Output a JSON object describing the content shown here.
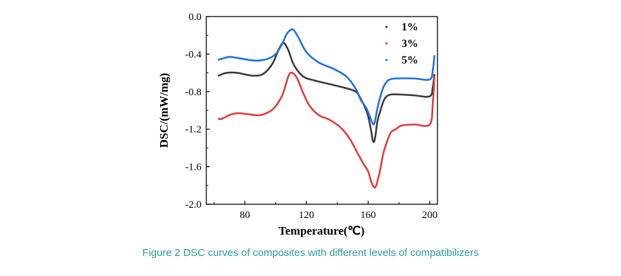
{
  "caption": "Figure 2 DSC curves of composites with different levels of compatibilizers",
  "chart_data": {
    "type": "line",
    "title": "",
    "xlabel": "Temperature(℃)",
    "ylabel": "DSC/(mW/mg)",
    "xlim": [
      55,
      205
    ],
    "ylim": [
      -2.0,
      0.0
    ],
    "xticks": [
      80,
      120,
      160,
      200
    ],
    "yticks": [
      0.0,
      -0.4,
      -0.8,
      -1.2,
      -1.6,
      -2.0
    ],
    "xtick_labels": [
      "80",
      "120",
      "160",
      "200"
    ],
    "ytick_labels": [
      "0.0",
      "-0.4",
      "-0.8",
      "-1.2",
      "-1.6",
      "-2.0"
    ],
    "legend_position": "top-right",
    "grid": false,
    "series": [
      {
        "name": "1%",
        "color": "#3a3a3a",
        "x": [
          63,
          68,
          75,
          85,
          92,
          98,
          102,
          105,
          108,
          112,
          118,
          125,
          135,
          145,
          152,
          155,
          158,
          160,
          162,
          163,
          164,
          165,
          166,
          168,
          170,
          172,
          175,
          180,
          190,
          200,
          202,
          203
        ],
        "y": [
          -0.63,
          -0.6,
          -0.6,
          -0.63,
          -0.61,
          -0.5,
          -0.35,
          -0.28,
          -0.35,
          -0.52,
          -0.64,
          -0.68,
          -0.72,
          -0.76,
          -0.8,
          -0.87,
          -0.97,
          -1.06,
          -1.22,
          -1.32,
          -1.33,
          -1.24,
          -1.12,
          -1.0,
          -0.9,
          -0.85,
          -0.83,
          -0.83,
          -0.84,
          -0.85,
          -0.75,
          -0.62
        ]
      },
      {
        "name": "3%",
        "color": "#e03b3b",
        "x": [
          63,
          65,
          70,
          75,
          82,
          90,
          98,
          104,
          107,
          109,
          111,
          114,
          118,
          122,
          128,
          135,
          142,
          148,
          153,
          157,
          160,
          162,
          164,
          165,
          166,
          168,
          170,
          173,
          175,
          178,
          182,
          190,
          200,
          202,
          203
        ],
        "y": [
          -1.09,
          -1.09,
          -1.05,
          -1.03,
          -1.04,
          -1.05,
          -0.99,
          -0.85,
          -0.7,
          -0.61,
          -0.6,
          -0.66,
          -0.82,
          -0.95,
          -1.05,
          -1.1,
          -1.18,
          -1.3,
          -1.45,
          -1.57,
          -1.65,
          -1.76,
          -1.82,
          -1.81,
          -1.76,
          -1.62,
          -1.45,
          -1.3,
          -1.23,
          -1.2,
          -1.16,
          -1.15,
          -1.15,
          -0.92,
          -0.65
        ]
      },
      {
        "name": "5%",
        "color": "#1f6fe0",
        "x": [
          63,
          65,
          70,
          75,
          82,
          88,
          95,
          100,
          104,
          107,
          110,
          112,
          115,
          120,
          128,
          138,
          146,
          152,
          155,
          157,
          159,
          161,
          163,
          164,
          165,
          166,
          168,
          170,
          173,
          178,
          190,
          200,
          202,
          203
        ],
        "y": [
          -0.46,
          -0.45,
          -0.43,
          -0.44,
          -0.46,
          -0.47,
          -0.45,
          -0.4,
          -0.3,
          -0.19,
          -0.14,
          -0.15,
          -0.23,
          -0.38,
          -0.49,
          -0.56,
          -0.64,
          -0.77,
          -0.88,
          -0.93,
          -0.98,
          -1.06,
          -1.14,
          -1.14,
          -1.07,
          -0.98,
          -0.85,
          -0.75,
          -0.68,
          -0.66,
          -0.66,
          -0.67,
          -0.57,
          -0.42
        ]
      }
    ]
  }
}
